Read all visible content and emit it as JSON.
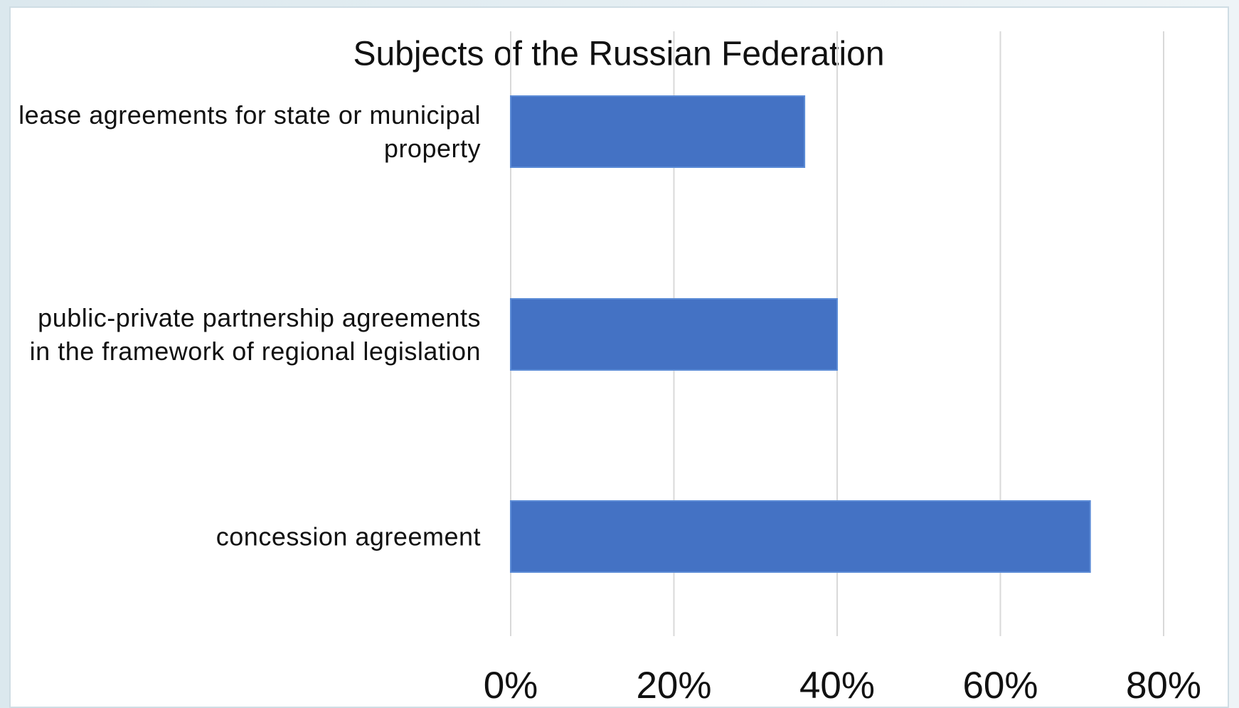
{
  "chart_data": {
    "type": "barh",
    "title": "Subjects of the Russian Federation",
    "categories": [
      "lease agreements for state or municipal property",
      "public-private partnership agreements in the framework of regional legislation",
      "concession agreement"
    ],
    "values": [
      36,
      40,
      71
    ],
    "color": "#4472c4",
    "xlim": [
      0,
      80
    ],
    "xticks": [
      {
        "value": 0,
        "label": "0%"
      },
      {
        "value": 20,
        "label": "20%"
      },
      {
        "value": 40,
        "label": "40%"
      },
      {
        "value": 60,
        "label": "60%"
      },
      {
        "value": 80,
        "label": "80%"
      }
    ],
    "grid": true
  }
}
